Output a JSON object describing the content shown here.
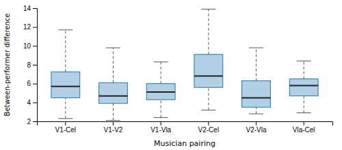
{
  "chart_data": {
    "type": "box",
    "categories": [
      "V1-Cel",
      "V1-V2",
      "V1-Vla",
      "V2-Cel",
      "V2-Vla",
      "Vla-Cel"
    ],
    "boxes": [
      {
        "whislo": 2.3,
        "q1": 4.5,
        "med": 5.7,
        "q3": 7.25,
        "whishi": 11.7
      },
      {
        "whislo": 2.1,
        "q1": 3.9,
        "med": 4.7,
        "q3": 6.1,
        "whishi": 9.8
      },
      {
        "whislo": 2.4,
        "q1": 4.3,
        "med": 5.1,
        "q3": 6.0,
        "whishi": 8.3
      },
      {
        "whislo": 3.2,
        "q1": 5.6,
        "med": 6.8,
        "q3": 9.1,
        "whishi": 13.9
      },
      {
        "whislo": 2.8,
        "q1": 3.5,
        "med": 4.5,
        "q3": 6.3,
        "whishi": 9.8
      },
      {
        "whislo": 2.9,
        "q1": 4.7,
        "med": 5.8,
        "q3": 6.5,
        "whishi": 8.4
      }
    ],
    "ylabel": "Between-performer difference",
    "xlabel": "Musician pairing",
    "ylim": [
      2,
      14
    ],
    "yticks": [
      2,
      4,
      6,
      8,
      10,
      12,
      14
    ],
    "grid": false
  }
}
